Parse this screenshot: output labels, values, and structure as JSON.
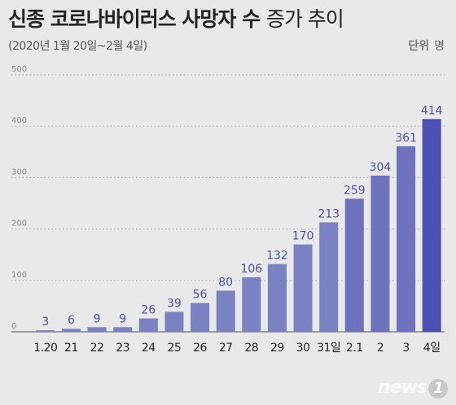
{
  "title_bold": "신종 코로나바이러스 사망자 수",
  "title_light": "증가 추이",
  "subtitle": "(2020년 1월 20일~2월 4일)",
  "unit_label": "단위",
  "unit_value": "명",
  "watermark_text": "news",
  "watermark_number": "1",
  "chart_data": {
    "type": "bar",
    "title": "신종 코로나바이러스 사망자 수 증가 추이",
    "subtitle": "(2020년 1월 20일~2월 4일)",
    "ylabel": "",
    "xlabel": "",
    "ylim": [
      0,
      500
    ],
    "yticks": [
      0,
      100,
      200,
      300,
      400,
      500
    ],
    "grid": true,
    "categories": [
      "1.20",
      "21",
      "22",
      "23",
      "24",
      "25",
      "26",
      "27",
      "28",
      "29",
      "30",
      "31일",
      "2.1",
      "2",
      "3",
      "4일"
    ],
    "values": [
      3,
      6,
      9,
      9,
      26,
      39,
      56,
      80,
      106,
      132,
      170,
      213,
      259,
      304,
      361,
      414
    ],
    "colors": {
      "january": "#7a82c4",
      "february": "#6c72bd",
      "latest": "#4a4fb0",
      "value_label": "#4a50a8",
      "tick_label": "#222222",
      "background": "#e9e9e9",
      "grid": "#b8b8b8"
    }
  }
}
